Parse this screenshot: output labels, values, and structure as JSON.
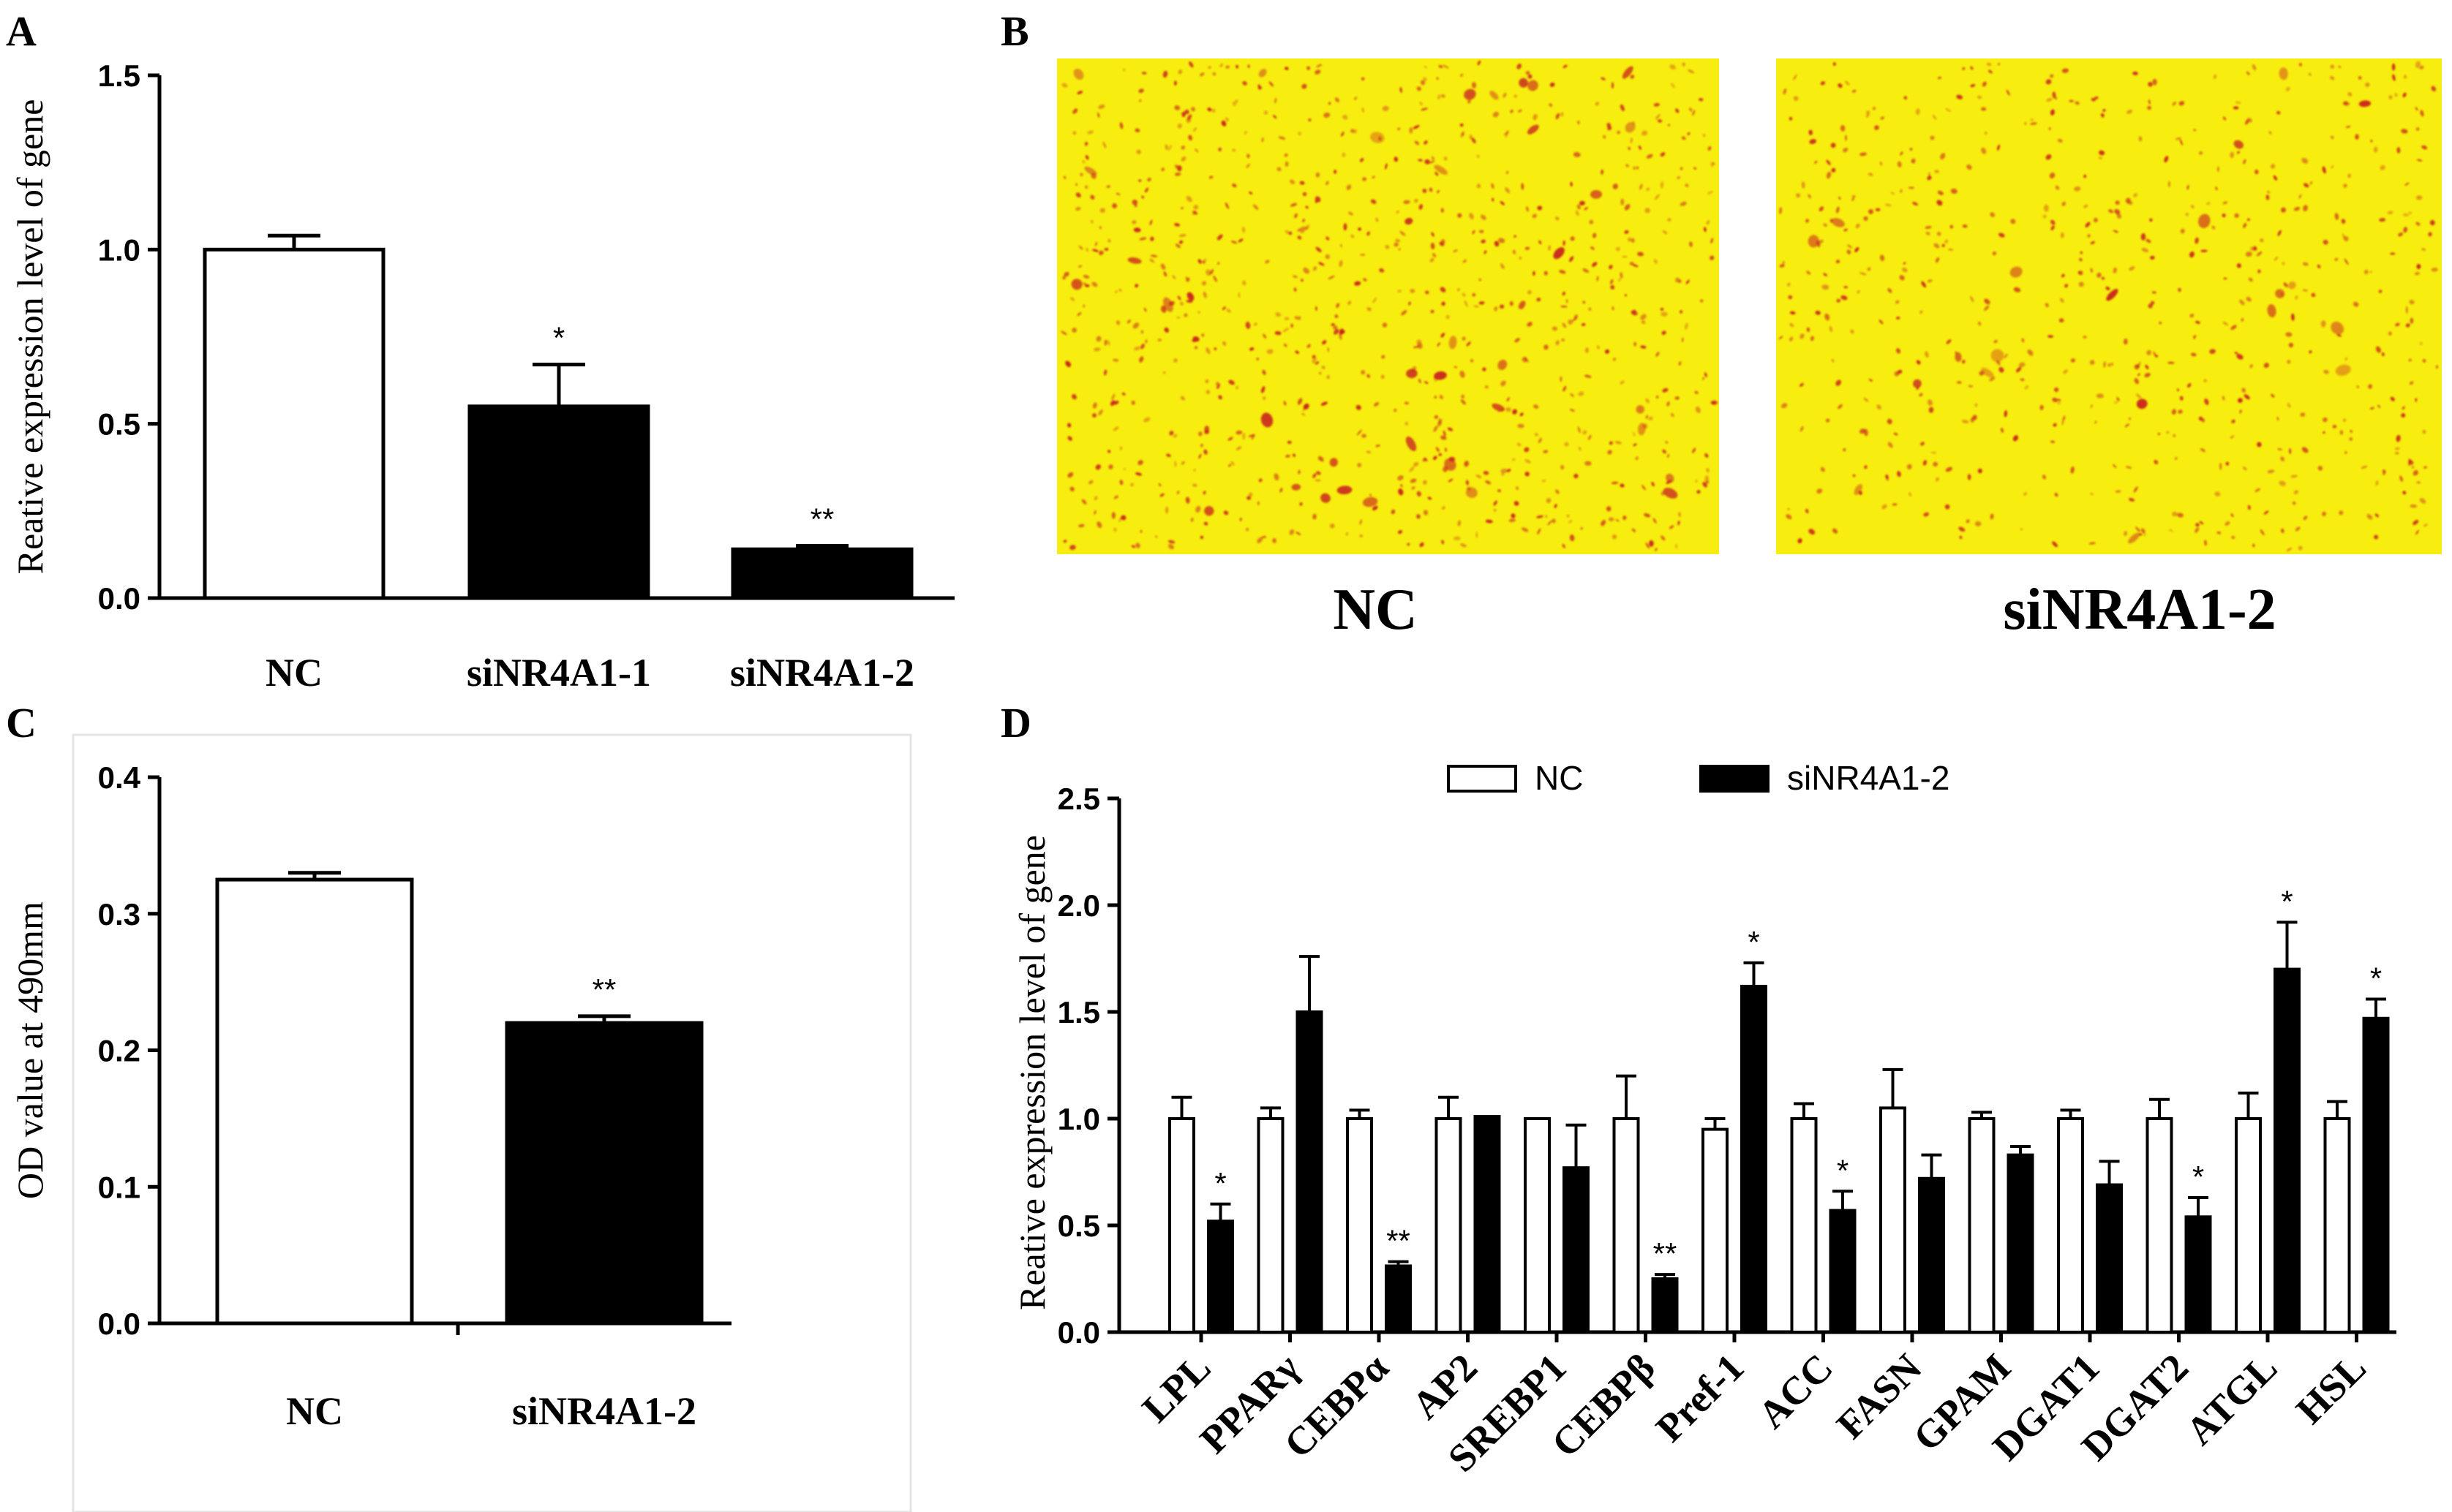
{
  "colors": {
    "bar_nc": "#ffffff",
    "bar_si": "#000000",
    "stain_bg": "#f7ee10",
    "stain_dot": "#c81e1e"
  },
  "icons": [
    "oil-red-o-stained-cells-nc",
    "oil-red-o-stained-cells-sinr4a1-2"
  ],
  "panel_labels": {
    "a": "A",
    "b": "B",
    "c": "C",
    "d": "D"
  },
  "panel_b": {
    "captions": [
      "NC",
      "siNR4A1-2"
    ]
  },
  "chart_data": [
    {
      "panel": "A",
      "type": "bar",
      "categories": [
        "NC",
        "siNR4A1-1",
        "siNR4A1-2"
      ],
      "values": [
        1.0,
        0.55,
        0.14
      ],
      "errors": [
        0.04,
        0.12,
        0.01
      ],
      "fills": [
        "white",
        "black",
        "black"
      ],
      "significance": [
        "",
        "*",
        "**"
      ],
      "ylabel": "Reative expression level of gene",
      "ylim": [
        0,
        1.5
      ],
      "yticks": [
        "0.0",
        "0.5",
        "1.0",
        "1.5"
      ]
    },
    {
      "panel": "C",
      "type": "bar",
      "categories": [
        "NC",
        "siNR4A1-2"
      ],
      "values": [
        0.325,
        0.22
      ],
      "errors": [
        0.005,
        0.005
      ],
      "fills": [
        "white",
        "black"
      ],
      "significance": [
        "",
        "**"
      ],
      "ylabel": "OD value at 490mm",
      "ylim": [
        0,
        0.4
      ],
      "yticks": [
        "0.0",
        "0.1",
        "0.2",
        "0.3",
        "0.4"
      ]
    },
    {
      "panel": "D",
      "type": "bar",
      "categories": [
        "LPL",
        "PPARγ",
        "CEBPα",
        "AP2",
        "SREBP1",
        "CEBPβ",
        "Pref-1",
        "ACC",
        "FASN",
        "GPAM",
        "DGAT1",
        "DGAT2",
        "ATGL",
        "HSL"
      ],
      "series": [
        {
          "name": "NC",
          "values": [
            1.0,
            1.0,
            1.0,
            1.0,
            1.0,
            1.0,
            0.95,
            1.0,
            1.05,
            1.0,
            1.0,
            1.0,
            1.0,
            1.0
          ],
          "errors": [
            0.1,
            0.05,
            0.04,
            0.1,
            0.0,
            0.2,
            0.05,
            0.07,
            0.18,
            0.03,
            0.04,
            0.09,
            0.12,
            0.08
          ]
        },
        {
          "name": "siNR4A1-2",
          "values": [
            0.52,
            1.5,
            0.31,
            1.01,
            0.77,
            0.25,
            1.62,
            0.57,
            0.72,
            0.83,
            0.69,
            0.54,
            1.7,
            1.47
          ],
          "errors": [
            0.08,
            0.26,
            0.02,
            0.0,
            0.2,
            0.02,
            0.11,
            0.09,
            0.11,
            0.04,
            0.11,
            0.09,
            0.22,
            0.09
          ],
          "significance": [
            "*",
            "",
            "**",
            "",
            "",
            "**",
            "*",
            "*",
            "",
            "",
            "",
            "*",
            "*",
            "*"
          ]
        }
      ],
      "ylabel": "Reative expression level of gene",
      "ylim": [
        0,
        2.5
      ],
      "yticks": [
        "0.0",
        "0.5",
        "1.0",
        "1.5",
        "2.0",
        "2.5"
      ],
      "legend": "top-center"
    }
  ]
}
